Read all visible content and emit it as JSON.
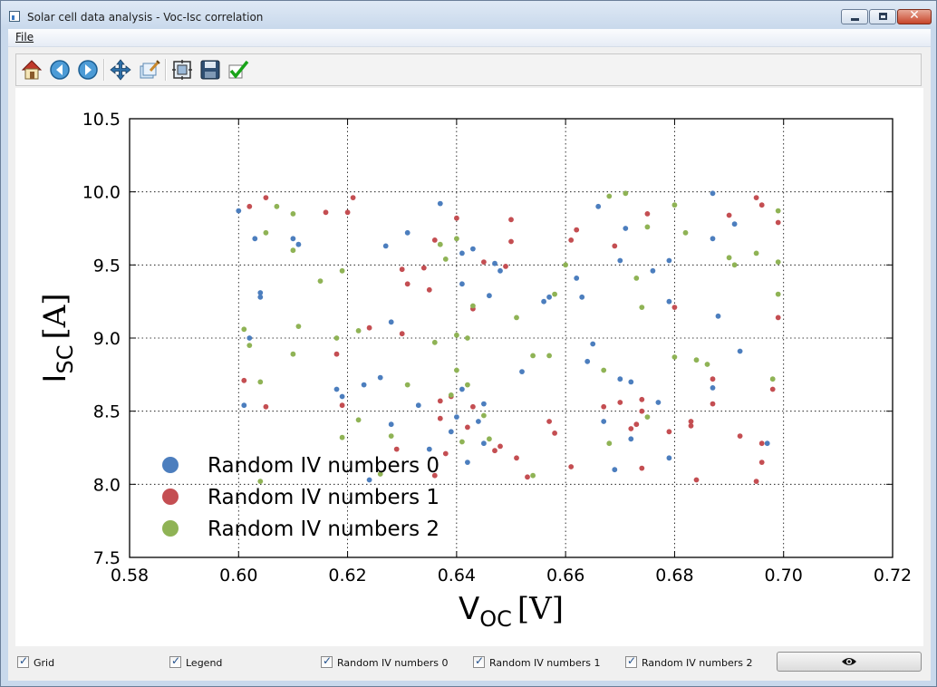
{
  "window": {
    "title": "Solar cell data analysis - Voc-Isc correlation"
  },
  "menu": {
    "file": "File"
  },
  "toolbar": {
    "icons": [
      "home-icon",
      "back-icon",
      "forward-icon",
      "pan-icon",
      "zoom-icon",
      "configure-subplots-icon",
      "save-icon",
      "check-icon"
    ]
  },
  "bottom": {
    "checkboxes": [
      {
        "label": "Grid",
        "checked": true
      },
      {
        "label": "Legend",
        "checked": true
      },
      {
        "label": "Random IV numbers 0",
        "checked": true
      },
      {
        "label": "Random IV numbers 1",
        "checked": true
      },
      {
        "label": "Random IV numbers 2",
        "checked": true
      }
    ],
    "eye_icon": "eye-icon"
  },
  "chart_data": {
    "type": "scatter",
    "xlabel": "V",
    "xlabel_sub": "OC",
    "xlabel_unit": "[V]",
    "ylabel": "I",
    "ylabel_sub": "SC",
    "ylabel_unit": "[A]",
    "xlim": [
      0.58,
      0.72
    ],
    "ylim": [
      7.5,
      10.5
    ],
    "xticks": [
      "0.58",
      "0.60",
      "0.62",
      "0.64",
      "0.66",
      "0.68",
      "0.70",
      "0.72"
    ],
    "yticks": [
      "7.5",
      "8.0",
      "8.5",
      "9.0",
      "9.5",
      "10.0",
      "10.5"
    ],
    "grid": true,
    "legend_position": "bottom-left",
    "series": [
      {
        "name": "Random IV numbers 0",
        "color": "#4c7ebe",
        "points": [
          [
            0.6,
            9.87
          ],
          [
            0.601,
            8.54
          ],
          [
            0.602,
            9.0
          ],
          [
            0.603,
            9.68
          ],
          [
            0.604,
            9.28
          ],
          [
            0.604,
            9.31
          ],
          [
            0.61,
            9.68
          ],
          [
            0.611,
            9.64
          ],
          [
            0.618,
            8.65
          ],
          [
            0.619,
            8.6
          ],
          [
            0.623,
            8.68
          ],
          [
            0.624,
            8.03
          ],
          [
            0.626,
            8.73
          ],
          [
            0.627,
            9.63
          ],
          [
            0.628,
            9.11
          ],
          [
            0.628,
            8.41
          ],
          [
            0.631,
            9.72
          ],
          [
            0.633,
            8.54
          ],
          [
            0.635,
            8.24
          ],
          [
            0.637,
            9.92
          ],
          [
            0.639,
            8.36
          ],
          [
            0.64,
            8.46
          ],
          [
            0.641,
            8.65
          ],
          [
            0.641,
            9.58
          ],
          [
            0.641,
            9.37
          ],
          [
            0.642,
            8.15
          ],
          [
            0.643,
            9.61
          ],
          [
            0.644,
            8.43
          ],
          [
            0.645,
            8.28
          ],
          [
            0.645,
            8.55
          ],
          [
            0.646,
            9.29
          ],
          [
            0.647,
            9.51
          ],
          [
            0.648,
            9.46
          ],
          [
            0.652,
            8.77
          ],
          [
            0.656,
            9.25
          ],
          [
            0.657,
            9.28
          ],
          [
            0.662,
            9.41
          ],
          [
            0.663,
            9.28
          ],
          [
            0.664,
            8.84
          ],
          [
            0.665,
            8.96
          ],
          [
            0.666,
            9.9
          ],
          [
            0.667,
            8.43
          ],
          [
            0.669,
            8.1
          ],
          [
            0.67,
            8.72
          ],
          [
            0.67,
            9.53
          ],
          [
            0.671,
            9.75
          ],
          [
            0.672,
            8.31
          ],
          [
            0.672,
            8.7
          ],
          [
            0.676,
            9.46
          ],
          [
            0.677,
            8.56
          ],
          [
            0.679,
            9.25
          ],
          [
            0.679,
            9.53
          ],
          [
            0.679,
            8.18
          ],
          [
            0.687,
            9.68
          ],
          [
            0.687,
            8.66
          ],
          [
            0.687,
            9.99
          ],
          [
            0.688,
            9.15
          ],
          [
            0.691,
            9.78
          ],
          [
            0.692,
            8.91
          ],
          [
            0.697,
            8.28
          ]
        ]
      },
      {
        "name": "Random IV numbers 1",
        "color": "#c44e52",
        "points": [
          [
            0.601,
            8.71
          ],
          [
            0.602,
            9.9
          ],
          [
            0.605,
            9.96
          ],
          [
            0.605,
            8.53
          ],
          [
            0.616,
            9.86
          ],
          [
            0.618,
            8.89
          ],
          [
            0.619,
            8.54
          ],
          [
            0.62,
            9.86
          ],
          [
            0.621,
            9.96
          ],
          [
            0.624,
            9.07
          ],
          [
            0.629,
            8.24
          ],
          [
            0.63,
            9.03
          ],
          [
            0.63,
            9.47
          ],
          [
            0.631,
            9.37
          ],
          [
            0.634,
            9.48
          ],
          [
            0.635,
            9.33
          ],
          [
            0.636,
            9.67
          ],
          [
            0.636,
            8.06
          ],
          [
            0.637,
            8.57
          ],
          [
            0.637,
            8.45
          ],
          [
            0.638,
            8.21
          ],
          [
            0.639,
            8.6
          ],
          [
            0.64,
            9.82
          ],
          [
            0.642,
            8.39
          ],
          [
            0.643,
            8.53
          ],
          [
            0.643,
            9.2
          ],
          [
            0.645,
            9.52
          ],
          [
            0.647,
            8.23
          ],
          [
            0.648,
            8.26
          ],
          [
            0.649,
            9.49
          ],
          [
            0.65,
            9.66
          ],
          [
            0.65,
            9.81
          ],
          [
            0.651,
            8.18
          ],
          [
            0.653,
            8.05
          ],
          [
            0.657,
            8.43
          ],
          [
            0.658,
            8.35
          ],
          [
            0.661,
            9.67
          ],
          [
            0.661,
            8.12
          ],
          [
            0.662,
            9.74
          ],
          [
            0.667,
            8.53
          ],
          [
            0.669,
            9.63
          ],
          [
            0.67,
            8.56
          ],
          [
            0.672,
            8.38
          ],
          [
            0.673,
            8.41
          ],
          [
            0.674,
            8.58
          ],
          [
            0.674,
            8.5
          ],
          [
            0.674,
            8.11
          ],
          [
            0.675,
            9.85
          ],
          [
            0.679,
            8.36
          ],
          [
            0.68,
            9.21
          ],
          [
            0.683,
            8.43
          ],
          [
            0.683,
            8.4
          ],
          [
            0.684,
            8.03
          ],
          [
            0.687,
            8.72
          ],
          [
            0.687,
            8.55
          ],
          [
            0.69,
            9.84
          ],
          [
            0.692,
            8.33
          ],
          [
            0.695,
            9.96
          ],
          [
            0.695,
            8.02
          ],
          [
            0.696,
            8.28
          ],
          [
            0.696,
            8.15
          ],
          [
            0.696,
            9.91
          ],
          [
            0.698,
            8.65
          ],
          [
            0.699,
            9.79
          ],
          [
            0.699,
            9.14
          ]
        ]
      },
      {
        "name": "Random IV numbers 2",
        "color": "#8fb355",
        "points": [
          [
            0.601,
            9.06
          ],
          [
            0.602,
            8.95
          ],
          [
            0.604,
            8.7
          ],
          [
            0.604,
            8.02
          ],
          [
            0.605,
            9.72
          ],
          [
            0.607,
            9.9
          ],
          [
            0.61,
            9.85
          ],
          [
            0.61,
            9.6
          ],
          [
            0.61,
            8.89
          ],
          [
            0.611,
            9.08
          ],
          [
            0.615,
            9.39
          ],
          [
            0.618,
            9.0
          ],
          [
            0.619,
            9.46
          ],
          [
            0.619,
            8.32
          ],
          [
            0.622,
            9.05
          ],
          [
            0.622,
            8.44
          ],
          [
            0.626,
            8.07
          ],
          [
            0.628,
            8.33
          ],
          [
            0.631,
            8.68
          ],
          [
            0.636,
            8.97
          ],
          [
            0.637,
            9.64
          ],
          [
            0.638,
            9.54
          ],
          [
            0.639,
            8.61
          ],
          [
            0.64,
            9.68
          ],
          [
            0.64,
            9.02
          ],
          [
            0.64,
            8.78
          ],
          [
            0.641,
            8.29
          ],
          [
            0.642,
            9.0
          ],
          [
            0.642,
            8.68
          ],
          [
            0.643,
            9.22
          ],
          [
            0.645,
            8.47
          ],
          [
            0.646,
            8.31
          ],
          [
            0.651,
            9.14
          ],
          [
            0.654,
            8.88
          ],
          [
            0.654,
            8.06
          ],
          [
            0.657,
            8.88
          ],
          [
            0.658,
            9.3
          ],
          [
            0.66,
            9.5
          ],
          [
            0.667,
            8.78
          ],
          [
            0.668,
            9.97
          ],
          [
            0.668,
            8.28
          ],
          [
            0.671,
            9.99
          ],
          [
            0.673,
            9.41
          ],
          [
            0.674,
            9.21
          ],
          [
            0.675,
            9.76
          ],
          [
            0.675,
            8.46
          ],
          [
            0.68,
            9.91
          ],
          [
            0.68,
            8.87
          ],
          [
            0.682,
            9.72
          ],
          [
            0.684,
            8.85
          ],
          [
            0.686,
            8.82
          ],
          [
            0.69,
            9.55
          ],
          [
            0.691,
            9.5
          ],
          [
            0.695,
            9.58
          ],
          [
            0.699,
            9.87
          ],
          [
            0.699,
            9.3
          ],
          [
            0.699,
            9.52
          ],
          [
            0.698,
            8.72
          ]
        ]
      }
    ]
  }
}
